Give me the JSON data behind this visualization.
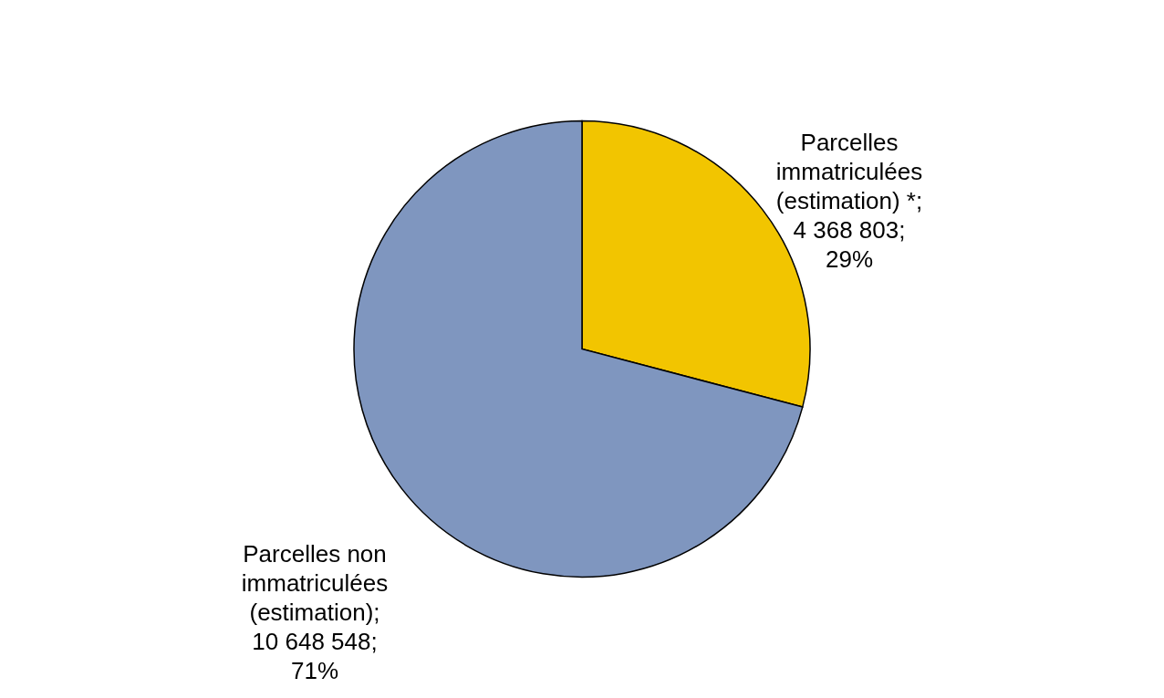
{
  "chart_data": {
    "type": "pie",
    "categories": [
      "Parcelles immatriculées (estimation) *",
      "Parcelles non immatriculées (estimation)"
    ],
    "values": [
      4368803,
      10648548
    ],
    "colors": [
      "#f2c500",
      "#7f96bf"
    ],
    "value_labels": [
      "; 4 368 803; 29%",
      "; 10 648 548; 71%"
    ]
  }
}
